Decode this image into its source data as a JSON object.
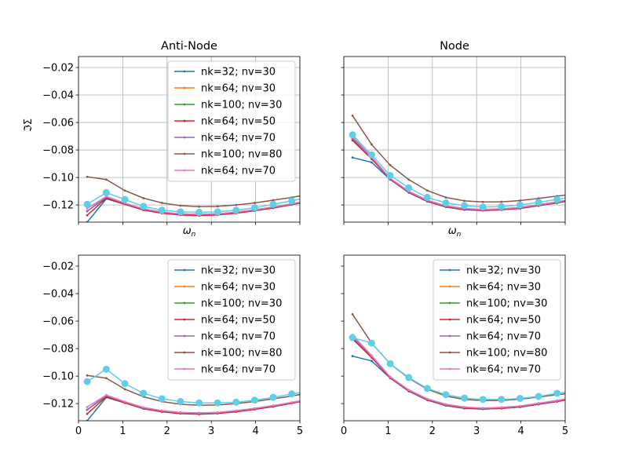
{
  "chart_data": [
    {
      "type": "line",
      "title": "Anti-Node",
      "ylabel": "ℑΣ",
      "xlabel": "ωn",
      "xlim": [
        0,
        5
      ],
      "ylim": [
        -0.1325,
        -0.012
      ],
      "grid": true,
      "legend": "top-right",
      "x": [
        0.196,
        0.628,
        1.047,
        1.466,
        1.885,
        2.304,
        2.723,
        3.142,
        3.56,
        3.979,
        4.398,
        4.817,
        5.236
      ],
      "series": [
        {
          "name": "nk=32; nv=30",
          "color": "#1f77b4",
          "values": [
            -0.1325,
            -0.1155,
            -0.1195,
            -0.1235,
            -0.1255,
            -0.1265,
            -0.1268,
            -0.1265,
            -0.1255,
            -0.1238,
            -0.1218,
            -0.1195,
            -0.117
          ]
        },
        {
          "name": "nk=64; nv=30",
          "color": "#ff7f0e",
          "values": [
            -0.1245,
            -0.1145,
            -0.119,
            -0.1232,
            -0.1255,
            -0.1268,
            -0.1272,
            -0.1268,
            -0.1255,
            -0.1238,
            -0.1218,
            -0.1195,
            -0.117
          ]
        },
        {
          "name": "nk=100; nv=30",
          "color": "#2ca02c",
          "values": [
            -0.1245,
            -0.1145,
            -0.119,
            -0.1232,
            -0.1255,
            -0.1268,
            -0.1272,
            -0.1268,
            -0.1255,
            -0.1238,
            -0.1218,
            -0.1195,
            -0.117
          ]
        },
        {
          "name": "nk=64; nv=50",
          "color": "#d62728",
          "values": [
            -0.1275,
            -0.115,
            -0.1195,
            -0.1237,
            -0.126,
            -0.1273,
            -0.1277,
            -0.1272,
            -0.126,
            -0.1242,
            -0.1222,
            -0.1198,
            -0.1172
          ]
        },
        {
          "name": "nk=64; nv=70",
          "color": "#9467bd",
          "values": [
            -0.1245,
            -0.114,
            -0.1188,
            -0.123,
            -0.1253,
            -0.1266,
            -0.127,
            -0.1266,
            -0.1253,
            -0.1236,
            -0.1216,
            -0.1193,
            -0.1168
          ]
        },
        {
          "name": "nk=100; nv=80",
          "color": "#8c564b",
          "values": [
            -0.0995,
            -0.1015,
            -0.1095,
            -0.115,
            -0.1185,
            -0.1205,
            -0.1212,
            -0.121,
            -0.12,
            -0.1185,
            -0.1165,
            -0.1145,
            -0.112
          ]
        },
        {
          "name": "nk=64; nv=70",
          "color": "#e377c2",
          "values": [
            -0.1225,
            -0.1138,
            -0.1186,
            -0.1228,
            -0.1251,
            -0.1264,
            -0.1268,
            -0.1264,
            -0.1251,
            -0.1234,
            -0.1214,
            -0.1191,
            -0.1166
          ]
        },
        {
          "name": "",
          "color": "#5fcfe8",
          "marker": "big",
          "values": [
            -0.1195,
            -0.111,
            -0.116,
            -0.121,
            -0.1238,
            -0.125,
            -0.1253,
            -0.125,
            -0.1238,
            -0.122,
            -0.1195,
            -0.117,
            -0.114
          ]
        }
      ]
    },
    {
      "type": "line",
      "title": "Node",
      "xlabel": "ωn",
      "xlim": [
        0,
        5
      ],
      "ylim": [
        -0.1325,
        -0.012
      ],
      "grid": true,
      "legend": "",
      "x": [
        0.196,
        0.628,
        1.047,
        1.466,
        1.885,
        2.304,
        2.723,
        3.142,
        3.56,
        3.979,
        4.398,
        4.817,
        5.236
      ],
      "series": [
        {
          "name": "nk=32; nv=30",
          "color": "#1f77b4",
          "values": [
            -0.0855,
            -0.089,
            -0.1015,
            -0.111,
            -0.1175,
            -0.1215,
            -0.1235,
            -0.124,
            -0.1235,
            -0.1225,
            -0.1205,
            -0.1185,
            -0.116
          ]
        },
        {
          "name": "nk=64; nv=30",
          "color": "#ff7f0e",
          "values": [
            -0.072,
            -0.086,
            -0.101,
            -0.1105,
            -0.117,
            -0.121,
            -0.123,
            -0.1237,
            -0.1232,
            -0.1222,
            -0.1202,
            -0.1182,
            -0.1158
          ]
        },
        {
          "name": "nk=100; nv=30",
          "color": "#2ca02c",
          "values": [
            -0.072,
            -0.086,
            -0.101,
            -0.1105,
            -0.117,
            -0.121,
            -0.123,
            -0.1237,
            -0.1232,
            -0.1222,
            -0.1202,
            -0.1182,
            -0.1158
          ]
        },
        {
          "name": "nk=64; nv=50",
          "color": "#d62728",
          "values": [
            -0.073,
            -0.0865,
            -0.1013,
            -0.1108,
            -0.1173,
            -0.1213,
            -0.1233,
            -0.124,
            -0.1235,
            -0.1225,
            -0.1205,
            -0.1185,
            -0.116
          ]
        },
        {
          "name": "nk=64; nv=70",
          "color": "#9467bd",
          "values": [
            -0.0715,
            -0.0855,
            -0.1008,
            -0.1103,
            -0.1168,
            -0.1208,
            -0.1228,
            -0.1235,
            -0.123,
            -0.122,
            -0.12,
            -0.118,
            -0.1155
          ]
        },
        {
          "name": "nk=100; nv=80",
          "color": "#8c564b",
          "values": [
            -0.055,
            -0.076,
            -0.091,
            -0.1015,
            -0.1095,
            -0.1145,
            -0.117,
            -0.1178,
            -0.1177,
            -0.1168,
            -0.1152,
            -0.1135,
            -0.112
          ]
        },
        {
          "name": "nk=64; nv=70",
          "color": "#e377c2",
          "values": [
            -0.07,
            -0.085,
            -0.1005,
            -0.11,
            -0.1165,
            -0.1205,
            -0.1225,
            -0.1232,
            -0.1227,
            -0.1217,
            -0.1197,
            -0.1177,
            -0.1152
          ]
        },
        {
          "name": "",
          "color": "#5fcfe8",
          "marker": "big",
          "values": [
            -0.069,
            -0.0835,
            -0.0985,
            -0.1075,
            -0.1145,
            -0.1185,
            -0.1205,
            -0.1215,
            -0.1212,
            -0.12,
            -0.118,
            -0.116,
            -0.1135
          ]
        }
      ]
    },
    {
      "type": "line",
      "title": "",
      "xlim": [
        0,
        5
      ],
      "ylim": [
        -0.1325,
        -0.012
      ],
      "grid": false,
      "legend": "top-right",
      "x": [
        0.196,
        0.628,
        1.047,
        1.466,
        1.885,
        2.304,
        2.723,
        3.142,
        3.56,
        3.979,
        4.398,
        4.817,
        5.236
      ],
      "series": [
        {
          "name": "nk=32; nv=30",
          "color": "#1f77b4",
          "values": [
            -0.1325,
            -0.1155,
            -0.1195,
            -0.1235,
            -0.1255,
            -0.1265,
            -0.1268,
            -0.1265,
            -0.1255,
            -0.1238,
            -0.1218,
            -0.1195,
            -0.117
          ]
        },
        {
          "name": "nk=64; nv=30",
          "color": "#ff7f0e",
          "values": [
            -0.1245,
            -0.1145,
            -0.119,
            -0.1232,
            -0.1255,
            -0.1268,
            -0.1272,
            -0.1268,
            -0.1255,
            -0.1238,
            -0.1218,
            -0.1195,
            -0.117
          ]
        },
        {
          "name": "nk=100; nv=30",
          "color": "#2ca02c",
          "values": [
            -0.1245,
            -0.1145,
            -0.119,
            -0.1232,
            -0.1255,
            -0.1268,
            -0.1272,
            -0.1268,
            -0.1255,
            -0.1238,
            -0.1218,
            -0.1195,
            -0.117
          ]
        },
        {
          "name": "nk=64; nv=50",
          "color": "#d62728",
          "values": [
            -0.1275,
            -0.115,
            -0.1195,
            -0.1237,
            -0.126,
            -0.1273,
            -0.1277,
            -0.1272,
            -0.126,
            -0.1242,
            -0.1222,
            -0.1198,
            -0.1172
          ]
        },
        {
          "name": "nk=64; nv=70",
          "color": "#9467bd",
          "values": [
            -0.1245,
            -0.114,
            -0.1188,
            -0.123,
            -0.1253,
            -0.1266,
            -0.127,
            -0.1266,
            -0.1253,
            -0.1236,
            -0.1216,
            -0.1193,
            -0.1168
          ]
        },
        {
          "name": "nk=100; nv=80",
          "color": "#8c564b",
          "values": [
            -0.0995,
            -0.1015,
            -0.1095,
            -0.115,
            -0.1185,
            -0.1205,
            -0.1212,
            -0.121,
            -0.12,
            -0.1185,
            -0.1165,
            -0.1145,
            -0.112
          ]
        },
        {
          "name": "nk=64; nv=70",
          "color": "#e377c2",
          "values": [
            -0.1225,
            -0.1138,
            -0.1186,
            -0.1228,
            -0.1251,
            -0.1264,
            -0.1268,
            -0.1264,
            -0.1251,
            -0.1234,
            -0.1214,
            -0.1191,
            -0.1166
          ]
        },
        {
          "name": "",
          "color": "#5fcfe8",
          "marker": "big",
          "values": [
            -0.104,
            -0.095,
            -0.1055,
            -0.1125,
            -0.1165,
            -0.1185,
            -0.1195,
            -0.1195,
            -0.119,
            -0.1175,
            -0.1155,
            -0.113,
            -0.111
          ]
        }
      ]
    },
    {
      "type": "line",
      "title": "",
      "xlim": [
        0,
        5
      ],
      "ylim": [
        -0.1325,
        -0.012
      ],
      "grid": false,
      "legend": "top-right",
      "x": [
        0.196,
        0.628,
        1.047,
        1.466,
        1.885,
        2.304,
        2.723,
        3.142,
        3.56,
        3.979,
        4.398,
        4.817,
        5.236
      ],
      "series": [
        {
          "name": "nk=32; nv=30",
          "color": "#1f77b4",
          "values": [
            -0.0855,
            -0.089,
            -0.1015,
            -0.111,
            -0.1175,
            -0.1215,
            -0.1235,
            -0.124,
            -0.1235,
            -0.1225,
            -0.1205,
            -0.1185,
            -0.116
          ]
        },
        {
          "name": "nk=64; nv=30",
          "color": "#ff7f0e",
          "values": [
            -0.072,
            -0.086,
            -0.101,
            -0.1105,
            -0.117,
            -0.121,
            -0.123,
            -0.1237,
            -0.1232,
            -0.1222,
            -0.1202,
            -0.1182,
            -0.1158
          ]
        },
        {
          "name": "nk=100; nv=30",
          "color": "#2ca02c",
          "values": [
            -0.072,
            -0.086,
            -0.101,
            -0.1105,
            -0.117,
            -0.121,
            -0.123,
            -0.1237,
            -0.1232,
            -0.1222,
            -0.1202,
            -0.1182,
            -0.1158
          ]
        },
        {
          "name": "nk=64; nv=50",
          "color": "#d62728",
          "values": [
            -0.073,
            -0.0865,
            -0.1013,
            -0.1108,
            -0.1173,
            -0.1213,
            -0.1233,
            -0.124,
            -0.1235,
            -0.1225,
            -0.1205,
            -0.1185,
            -0.116
          ]
        },
        {
          "name": "nk=64; nv=70",
          "color": "#9467bd",
          "values": [
            -0.0715,
            -0.0855,
            -0.1008,
            -0.1103,
            -0.1168,
            -0.1208,
            -0.1228,
            -0.1235,
            -0.123,
            -0.122,
            -0.12,
            -0.118,
            -0.1155
          ]
        },
        {
          "name": "nk=100; nv=80",
          "color": "#8c564b",
          "values": [
            -0.055,
            -0.076,
            -0.091,
            -0.1015,
            -0.1095,
            -0.1145,
            -0.117,
            -0.1178,
            -0.1177,
            -0.1168,
            -0.1152,
            -0.1135,
            -0.112
          ]
        },
        {
          "name": "nk=64; nv=70",
          "color": "#e377c2",
          "values": [
            -0.07,
            -0.085,
            -0.1005,
            -0.11,
            -0.1165,
            -0.1205,
            -0.1225,
            -0.1232,
            -0.1227,
            -0.1217,
            -0.1197,
            -0.1177,
            -0.1152
          ]
        },
        {
          "name": "",
          "color": "#5fcfe8",
          "marker": "big",
          "values": [
            -0.072,
            -0.076,
            -0.091,
            -0.101,
            -0.109,
            -0.1135,
            -0.116,
            -0.117,
            -0.117,
            -0.1162,
            -0.1148,
            -0.1125,
            -0.1105
          ]
        }
      ]
    }
  ],
  "axes": {
    "yticks": [
      -0.02,
      -0.04,
      -0.06,
      -0.08,
      -0.1,
      -0.12
    ],
    "ytick_labels": [
      "−0.02",
      "−0.04",
      "−0.06",
      "−0.08",
      "−0.10",
      "−0.12"
    ],
    "xticks": [
      0,
      1,
      2,
      3,
      4,
      5
    ],
    "xtick_labels": [
      "0",
      "1",
      "2",
      "3",
      "4",
      "5"
    ]
  },
  "style": {
    "grid_color": "#b0b0b0",
    "axis_color": "#000000",
    "legend_border": "#cccccc"
  }
}
